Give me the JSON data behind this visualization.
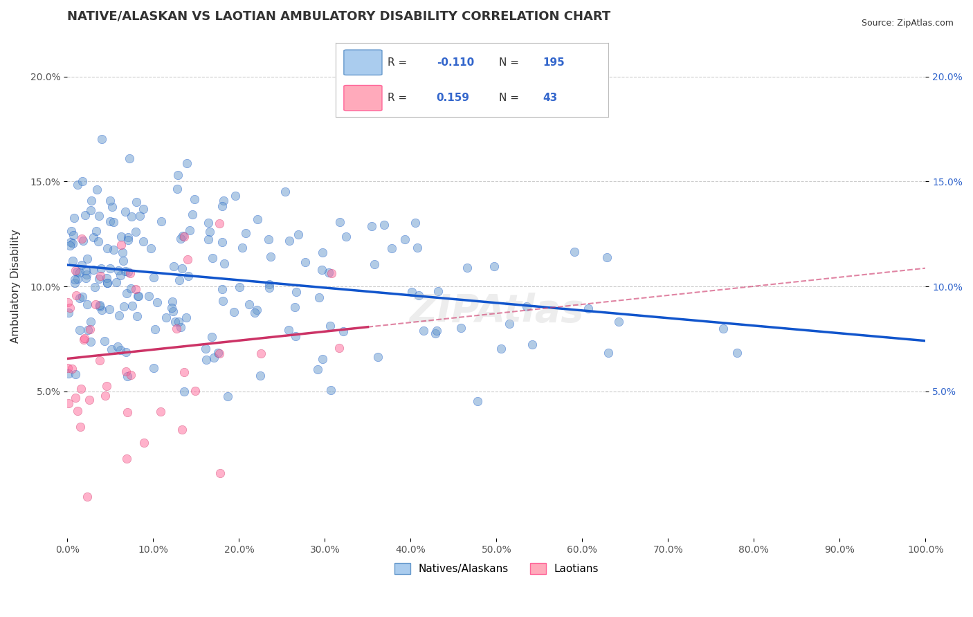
{
  "title": "NATIVE/ALASKAN VS LAOTIAN AMBULATORY DISABILITY CORRELATION CHART",
  "source": "Source: ZipAtlas.com",
  "xlabel": "",
  "ylabel": "Ambulatory Disability",
  "xlim": [
    0,
    1.0
  ],
  "ylim": [
    -0.02,
    0.22
  ],
  "x_ticks": [
    0.0,
    0.1,
    0.2,
    0.3,
    0.4,
    0.5,
    0.6,
    0.7,
    0.8,
    0.9,
    1.0
  ],
  "y_ticks": [
    0.05,
    0.1,
    0.15,
    0.2
  ],
  "blue_R": -0.11,
  "blue_N": 195,
  "pink_R": 0.159,
  "pink_N": 43,
  "blue_color": "#6699CC",
  "pink_color": "#FF6699",
  "blue_line_color": "#1155CC",
  "pink_line_color": "#CC3366",
  "background_color": "#ffffff",
  "grid_color": "#cccccc",
  "title_color": "#333333",
  "watermark_text": "ZIPAtlas",
  "legend_blue_label_R": "R = -0.110",
  "legend_blue_label_N": "N = 195",
  "legend_pink_label_R": "R =  0.159",
  "legend_pink_label_N": "N =  43",
  "seed": 42
}
